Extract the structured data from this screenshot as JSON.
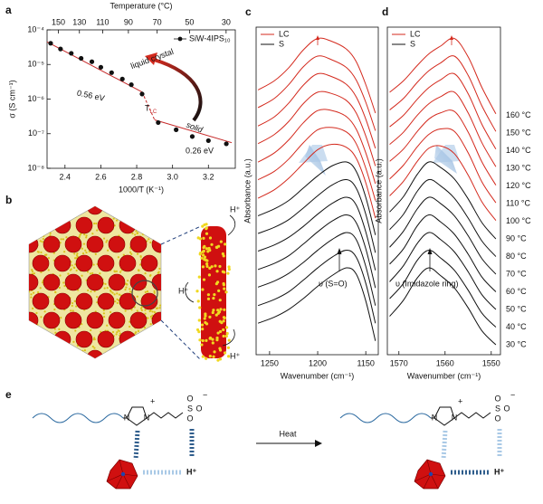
{
  "panel_labels": [
    "a",
    "b",
    "c",
    "d",
    "e"
  ],
  "chart_data": [
    {
      "type": "scatter",
      "x_label": "1000/T (K⁻¹)",
      "y_label": "σ (S cm⁻¹)",
      "x2_label": "Temperature (°C)",
      "xlim": [
        2.3,
        3.35
      ],
      "xticks": [
        2.4,
        2.6,
        2.8,
        {
          "value": 3,
          "label": "3.0"
        },
        3.2
      ],
      "x2ticks": [
        150,
        130,
        110,
        90,
        70,
        50,
        30
      ],
      "ylim": [
        1e-08,
        0.0001
      ],
      "log_y": true,
      "yticks": [
        {
          "value": 0.0001,
          "label": "10⁻⁴"
        },
        {
          "value": 1e-05,
          "label": "10⁻⁵"
        },
        {
          "value": 1e-06,
          "label": "10⁻⁶"
        },
        {
          "value": 1e-07,
          "label": "10⁻⁷"
        },
        {
          "value": 1e-08,
          "label": "10⁻⁸"
        }
      ],
      "x": [
        2.32,
        2.375,
        2.435,
        2.49,
        2.55,
        2.6,
        2.66,
        2.72,
        2.77,
        2.83,
        2.92,
        3.02,
        3.11,
        3.2,
        3.3
      ],
      "series": [
        {
          "name": "SiW-4IPS₁₀",
          "color": "#111111",
          "values": [
            4.1e-05,
            2.8e-05,
            2.1e-05,
            1.5e-05,
            1.2e-05,
            8.3e-06,
            5.8e-06,
            3.8e-06,
            2.6e-06,
            1.4e-06,
            2.1e-07,
            1.3e-07,
            8.3e-08,
            6.3e-08,
            5.1e-08
          ]
        }
      ],
      "legend": "upper right",
      "fit_color": "#c62828",
      "fit_lines": [
        {
          "x": [
            2.3,
            2.83
          ],
          "y": [
            4.5e-05,
            1.6e-06
          ]
        },
        {
          "x": [
            2.83,
            2.9
          ],
          "y": [
            1.6e-06,
            2.5e-07
          ],
          "dashed": true
        },
        {
          "x": [
            2.9,
            3.33
          ],
          "y": [
            2.5e-07,
            5.5e-08
          ]
        }
      ],
      "annotations": [
        {
          "text": "liquid crystal",
          "color": "#c62828"
        },
        {
          "text": "0.56 eV",
          "color": "#c62828"
        },
        {
          "text": "T",
          "sub": "LC",
          "color": "#c62828"
        },
        {
          "text": "solid",
          "color": "#111111"
        },
        {
          "text": "0.26 eV",
          "color": "#c62828"
        }
      ]
    },
    {
      "type": "line",
      "x_label": "Wavenumber (cm⁻¹)",
      "y_label": "Absorbance (a.u.)",
      "xlim": [
        1264,
        1137
      ],
      "xticks": [
        1250,
        1200,
        1150
      ],
      "legend": [
        {
          "name": "LC",
          "color": "#d42a1e"
        },
        {
          "name": "S",
          "color": "#111111"
        }
      ],
      "peak_label": "υ (S=O)",
      "x": [
        1262,
        1245,
        1230,
        1215,
        1200,
        1185,
        1170,
        1160,
        1150,
        1140
      ],
      "series": [
        {
          "color": "#d42a1e",
          "values": [
            0.33,
            0.45,
            0.62,
            0.85,
            1.0,
            0.96,
            0.86,
            0.7,
            0.4,
            0.03
          ]
        },
        {
          "color": "#d42a1e",
          "values": [
            0.33,
            0.45,
            0.63,
            0.86,
            1.0,
            0.95,
            0.85,
            0.69,
            0.4,
            0.03
          ]
        },
        {
          "color": "#d42a1e",
          "values": [
            0.32,
            0.44,
            0.62,
            0.85,
            1.0,
            0.96,
            0.86,
            0.7,
            0.41,
            0.03
          ]
        },
        {
          "color": "#d42a1e",
          "values": [
            0.32,
            0.44,
            0.61,
            0.84,
            0.99,
            0.97,
            0.88,
            0.72,
            0.42,
            0.03
          ]
        },
        {
          "color": "#d42a1e",
          "values": [
            0.31,
            0.43,
            0.6,
            0.82,
            0.98,
            0.98,
            0.9,
            0.74,
            0.43,
            0.03
          ]
        },
        {
          "color": "#d42a1e",
          "values": [
            0.31,
            0.42,
            0.58,
            0.79,
            0.96,
            0.99,
            0.93,
            0.78,
            0.46,
            0.04
          ]
        },
        {
          "color": "#d42a1e",
          "values": [
            0.3,
            0.41,
            0.56,
            0.75,
            0.93,
            1.0,
            0.96,
            0.82,
            0.5,
            0.04
          ]
        },
        {
          "color": "#111111",
          "values": [
            0.3,
            0.39,
            0.5,
            0.66,
            0.82,
            0.95,
            1.0,
            0.88,
            0.54,
            0.05
          ]
        },
        {
          "color": "#111111",
          "values": [
            0.3,
            0.38,
            0.48,
            0.63,
            0.79,
            0.93,
            1.0,
            0.89,
            0.55,
            0.05
          ]
        },
        {
          "color": "#111111",
          "values": [
            0.3,
            0.38,
            0.48,
            0.62,
            0.78,
            0.92,
            1.0,
            0.9,
            0.55,
            0.05
          ]
        },
        {
          "color": "#111111",
          "values": [
            0.29,
            0.37,
            0.47,
            0.62,
            0.78,
            0.92,
            1.0,
            0.9,
            0.56,
            0.05
          ]
        },
        {
          "color": "#111111",
          "values": [
            0.29,
            0.37,
            0.47,
            0.61,
            0.77,
            0.91,
            1.0,
            0.91,
            0.56,
            0.05
          ]
        },
        {
          "color": "#111111",
          "values": [
            0.28,
            0.36,
            0.46,
            0.61,
            0.77,
            0.91,
            1.0,
            0.91,
            0.57,
            0.05
          ]
        },
        {
          "color": "#111111",
          "values": [
            0.28,
            0.36,
            0.46,
            0.6,
            0.76,
            0.9,
            1.0,
            0.92,
            0.57,
            0.05
          ]
        }
      ]
    },
    {
      "type": "line",
      "x_label": "Wavenumber (cm⁻¹)",
      "y_label": "Absorbance (a.u.)",
      "xlim": [
        1572.5,
        1548
      ],
      "xticks": [
        1570,
        1560,
        1550
      ],
      "legend": [
        {
          "name": "LC",
          "color": "#d42a1e"
        },
        {
          "name": "S",
          "color": "#111111"
        }
      ],
      "peak_label": "υ (Imidazole ring)",
      "x": [
        1572,
        1569,
        1566,
        1563.5,
        1561,
        1558,
        1555,
        1552,
        1549
      ],
      "series": [
        {
          "name": "160 °C",
          "color": "#d42a1e",
          "values": [
            0.3,
            0.45,
            0.65,
            0.8,
            0.9,
            1.0,
            0.76,
            0.36,
            0.02
          ]
        },
        {
          "name": "150 °C",
          "color": "#d42a1e",
          "values": [
            0.3,
            0.45,
            0.66,
            0.81,
            0.91,
            1.0,
            0.75,
            0.35,
            0.02
          ]
        },
        {
          "name": "140 °C",
          "color": "#d42a1e",
          "values": [
            0.31,
            0.46,
            0.67,
            0.82,
            0.92,
            1.0,
            0.74,
            0.34,
            0.02
          ]
        },
        {
          "name": "130 °C",
          "color": "#d42a1e",
          "values": [
            0.31,
            0.47,
            0.69,
            0.84,
            0.93,
            0.99,
            0.72,
            0.33,
            0.02
          ]
        },
        {
          "name": "120 °C",
          "color": "#d42a1e",
          "values": [
            0.32,
            0.48,
            0.71,
            0.87,
            0.95,
            0.97,
            0.7,
            0.31,
            0.01
          ]
        },
        {
          "name": "110 °C",
          "color": "#d42a1e",
          "values": [
            0.32,
            0.5,
            0.74,
            0.9,
            0.97,
            0.94,
            0.66,
            0.28,
            0.01
          ]
        },
        {
          "name": "100 °C",
          "color": "#d42a1e",
          "values": [
            0.33,
            0.52,
            0.78,
            0.95,
            0.98,
            0.88,
            0.6,
            0.25,
            0.01
          ]
        },
        {
          "name": "90 °C",
          "color": "#111111",
          "values": [
            0.35,
            0.55,
            0.84,
            1.0,
            0.93,
            0.78,
            0.52,
            0.21,
            0.0
          ]
        },
        {
          "name": "80 °C",
          "color": "#111111",
          "values": [
            0.35,
            0.55,
            0.85,
            1.0,
            0.92,
            0.76,
            0.5,
            0.2,
            0.0
          ]
        },
        {
          "name": "70 °C",
          "color": "#111111",
          "values": [
            0.35,
            0.56,
            0.85,
            1.0,
            0.92,
            0.76,
            0.5,
            0.2,
            0.0
          ]
        },
        {
          "name": "60 °C",
          "color": "#111111",
          "values": [
            0.36,
            0.56,
            0.86,
            1.0,
            0.91,
            0.75,
            0.49,
            0.19,
            0.0
          ]
        },
        {
          "name": "50 °C",
          "color": "#111111",
          "values": [
            0.36,
            0.57,
            0.86,
            1.0,
            0.91,
            0.75,
            0.49,
            0.19,
            0.0
          ]
        },
        {
          "name": "40 °C",
          "color": "#111111",
          "values": [
            0.37,
            0.57,
            0.87,
            1.0,
            0.9,
            0.74,
            0.48,
            0.18,
            0.0
          ]
        },
        {
          "name": "30 °C",
          "color": "#111111",
          "values": [
            0.37,
            0.58,
            0.87,
            1.0,
            0.9,
            0.74,
            0.48,
            0.18,
            0.0
          ]
        }
      ]
    }
  ],
  "panel_b": {
    "proton_labels": [
      "H⁺",
      "H⁺",
      "H⁺"
    ]
  },
  "panel_e": {
    "arrow_label": "Heat",
    "molecules": [
      {
        "charges": [
          "+",
          "−"
        ],
        "atoms": [
          "N",
          "N",
          "S",
          "O",
          "O",
          "O"
        ],
        "proton": "H⁺"
      },
      {
        "charges": [
          "+",
          "−"
        ],
        "atoms": [
          "N",
          "N",
          "S",
          "O",
          "O",
          "O"
        ],
        "proton": "H⁺"
      }
    ]
  }
}
